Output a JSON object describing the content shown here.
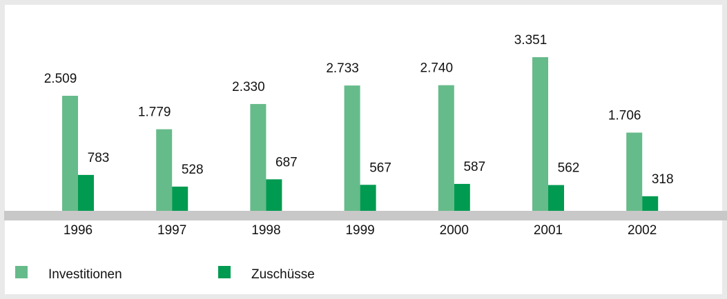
{
  "chart_data": {
    "type": "bar",
    "categories": [
      "1996",
      "1997",
      "1998",
      "1999",
      "2000",
      "2001",
      "2002"
    ],
    "series": [
      {
        "name": "Investitionen",
        "color": "#66bb8a",
        "values": [
          2509,
          1779,
          2330,
          2733,
          2740,
          3351,
          1706
        ],
        "value_labels": [
          "2.509",
          "1.779",
          "2.330",
          "2.733",
          "2.740",
          "3.351",
          "1.706"
        ]
      },
      {
        "name": "Zuschüsse",
        "color": "#009a50",
        "values": [
          783,
          528,
          687,
          567,
          587,
          562,
          318
        ],
        "value_labels": [
          "783",
          "528",
          "687",
          "567",
          "587",
          "562",
          "318"
        ]
      }
    ]
  }
}
